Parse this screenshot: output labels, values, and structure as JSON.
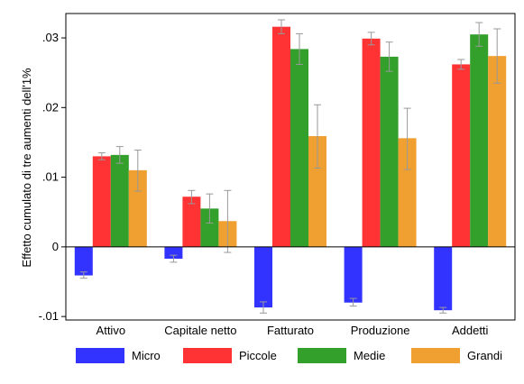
{
  "chart_data": {
    "type": "bar",
    "ylabel": "Effetto cumulato di tre aumenti dell'1%",
    "categories": [
      "Attivo",
      "Capitale netto",
      "Fatturato",
      "Produzione",
      "Addetti"
    ],
    "ylim": [
      -0.0105,
      0.0335
    ],
    "yticks": [
      {
        "value": 0.03,
        "label": ".03"
      },
      {
        "value": 0.02,
        "label": ".02"
      },
      {
        "value": 0.01,
        "label": ".01"
      },
      {
        "value": 0,
        "label": "0"
      },
      {
        "value": -0.01,
        "label": "-.01"
      }
    ],
    "grid": false,
    "legend_position": "bottom",
    "series": [
      {
        "name": "Micro",
        "color": "#3333ff",
        "values": [
          -0.0041,
          -0.0017,
          -0.0087,
          -0.008,
          -0.0091
        ],
        "ci_low": [
          -0.0045,
          -0.0022,
          -0.0095,
          -0.0085,
          -0.0095
        ],
        "ci_high": [
          -0.0036,
          -0.0012,
          -0.0079,
          -0.0074,
          -0.0087
        ]
      },
      {
        "name": "Piccole",
        "color": "#ff3333",
        "values": [
          0.013,
          0.0072,
          0.0316,
          0.0299,
          0.0262
        ],
        "ci_low": [
          0.0125,
          0.0062,
          0.0306,
          0.029,
          0.0255
        ],
        "ci_high": [
          0.0135,
          0.0081,
          0.0326,
          0.0308,
          0.0269
        ]
      },
      {
        "name": "Medie",
        "color": "#33a02c",
        "values": [
          0.0132,
          0.0055,
          0.0284,
          0.0273,
          0.0305
        ],
        "ci_low": [
          0.012,
          0.0034,
          0.0262,
          0.0252,
          0.0288
        ],
        "ci_high": [
          0.0144,
          0.0076,
          0.0306,
          0.0294,
          0.0322
        ]
      },
      {
        "name": "Grandi",
        "color": "#f0a030",
        "values": [
          0.011,
          0.0037,
          0.0159,
          0.0156,
          0.0274
        ],
        "ci_low": [
          0.008,
          -0.0008,
          0.0113,
          0.0111,
          0.0235
        ],
        "ci_high": [
          0.0139,
          0.0081,
          0.0204,
          0.0199,
          0.0313
        ]
      }
    ]
  }
}
